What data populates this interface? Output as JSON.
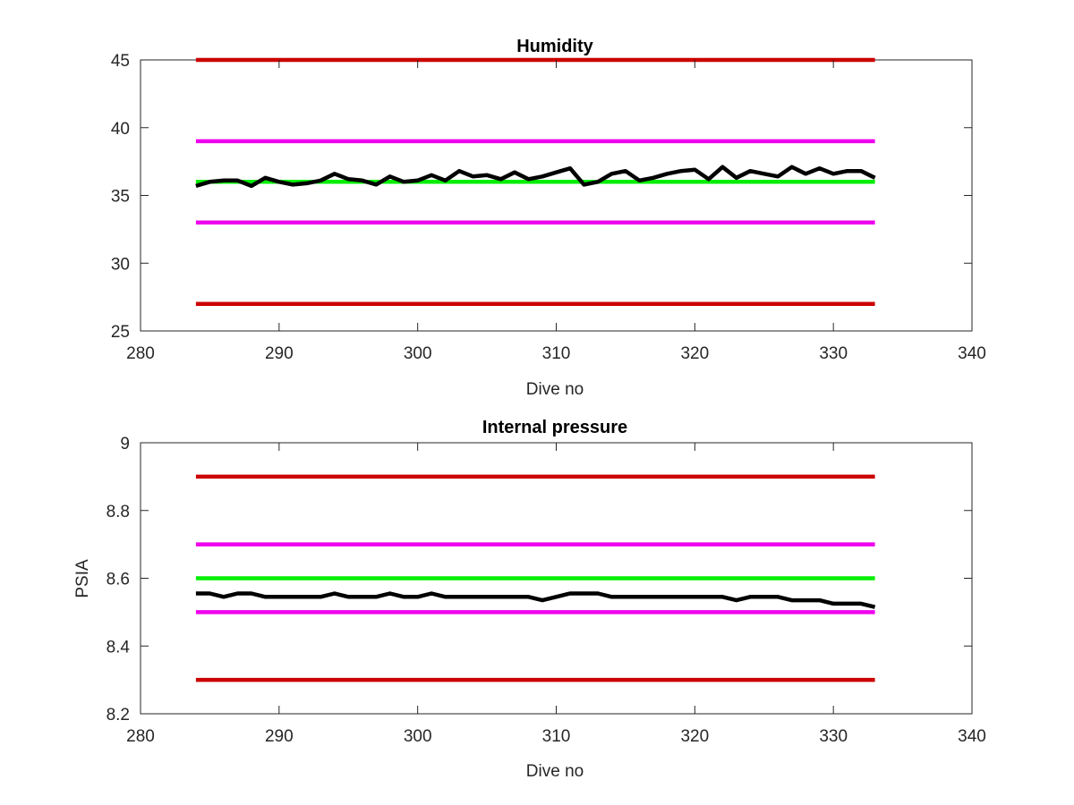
{
  "chart_data": [
    {
      "type": "line",
      "title": "Humidity",
      "xlabel": "Dive no",
      "ylabel": "",
      "xlim": [
        280,
        340
      ],
      "ylim": [
        25,
        45
      ],
      "xticks": [
        280,
        290,
        300,
        310,
        320,
        330,
        340
      ],
      "yticks": [
        25,
        30,
        35,
        40,
        45
      ],
      "grid": false,
      "series": [
        {
          "color": "#cc0000",
          "x": [
            284,
            333
          ],
          "values": [
            45,
            45
          ]
        },
        {
          "color": "#cc0000",
          "x": [
            284,
            333
          ],
          "values": [
            27,
            27
          ]
        },
        {
          "color": "#ee00ee",
          "x": [
            284,
            333
          ],
          "values": [
            39,
            39
          ]
        },
        {
          "color": "#ee00ee",
          "x": [
            284,
            333
          ],
          "values": [
            33,
            33
          ]
        },
        {
          "color": "#00ee00",
          "x": [
            284,
            333
          ],
          "values": [
            36,
            36
          ]
        },
        {
          "color": "#000000",
          "x": [
            284,
            285,
            286,
            287,
            288,
            289,
            290,
            291,
            292,
            293,
            294,
            295,
            296,
            297,
            298,
            299,
            300,
            301,
            302,
            303,
            304,
            305,
            306,
            307,
            308,
            309,
            310,
            311,
            312,
            313,
            314,
            315,
            316,
            317,
            318,
            319,
            320,
            321,
            322,
            323,
            324,
            325,
            326,
            327,
            328,
            329,
            330,
            331,
            332,
            333
          ],
          "values": [
            35.7,
            36.0,
            36.1,
            36.1,
            35.7,
            36.3,
            36.0,
            35.8,
            35.9,
            36.1,
            36.6,
            36.2,
            36.1,
            35.8,
            36.4,
            36.0,
            36.1,
            36.5,
            36.1,
            36.8,
            36.4,
            36.5,
            36.2,
            36.7,
            36.2,
            36.4,
            36.7,
            37.0,
            35.8,
            36.0,
            36.6,
            36.8,
            36.1,
            36.3,
            36.6,
            36.8,
            36.9,
            36.2,
            37.1,
            36.3,
            36.8,
            36.6,
            36.4,
            37.1,
            36.6,
            37.0,
            36.6,
            36.8,
            36.8,
            36.3
          ]
        }
      ]
    },
    {
      "type": "line",
      "title": "Internal pressure",
      "xlabel": "Dive no",
      "ylabel": "PSIA",
      "xlim": [
        280,
        340
      ],
      "ylim": [
        8.2,
        9
      ],
      "xticks": [
        280,
        290,
        300,
        310,
        320,
        330,
        340
      ],
      "yticks": [
        8.2,
        8.4,
        8.6,
        8.8,
        9
      ],
      "grid": false,
      "series": [
        {
          "color": "#cc0000",
          "x": [
            284,
            333
          ],
          "values": [
            8.9,
            8.9
          ]
        },
        {
          "color": "#cc0000",
          "x": [
            284,
            333
          ],
          "values": [
            8.3,
            8.3
          ]
        },
        {
          "color": "#ee00ee",
          "x": [
            284,
            333
          ],
          "values": [
            8.7,
            8.7
          ]
        },
        {
          "color": "#ee00ee",
          "x": [
            284,
            333
          ],
          "values": [
            8.5,
            8.5
          ]
        },
        {
          "color": "#00ee00",
          "x": [
            284,
            333
          ],
          "values": [
            8.6,
            8.6
          ]
        },
        {
          "color": "#000000",
          "x": [
            284,
            285,
            286,
            287,
            288,
            289,
            290,
            291,
            292,
            293,
            294,
            295,
            296,
            297,
            298,
            299,
            300,
            301,
            302,
            303,
            304,
            305,
            306,
            307,
            308,
            309,
            310,
            311,
            312,
            313,
            314,
            315,
            316,
            317,
            318,
            319,
            320,
            321,
            322,
            323,
            324,
            325,
            326,
            327,
            328,
            329,
            330,
            331,
            332,
            333
          ],
          "values": [
            8.555,
            8.555,
            8.545,
            8.555,
            8.555,
            8.545,
            8.545,
            8.545,
            8.545,
            8.545,
            8.555,
            8.545,
            8.545,
            8.545,
            8.555,
            8.545,
            8.545,
            8.555,
            8.545,
            8.545,
            8.545,
            8.545,
            8.545,
            8.545,
            8.545,
            8.535,
            8.545,
            8.555,
            8.555,
            8.555,
            8.545,
            8.545,
            8.545,
            8.545,
            8.545,
            8.545,
            8.545,
            8.545,
            8.545,
            8.535,
            8.545,
            8.545,
            8.545,
            8.535,
            8.535,
            8.535,
            8.525,
            8.525,
            8.525,
            8.515
          ]
        }
      ]
    }
  ]
}
